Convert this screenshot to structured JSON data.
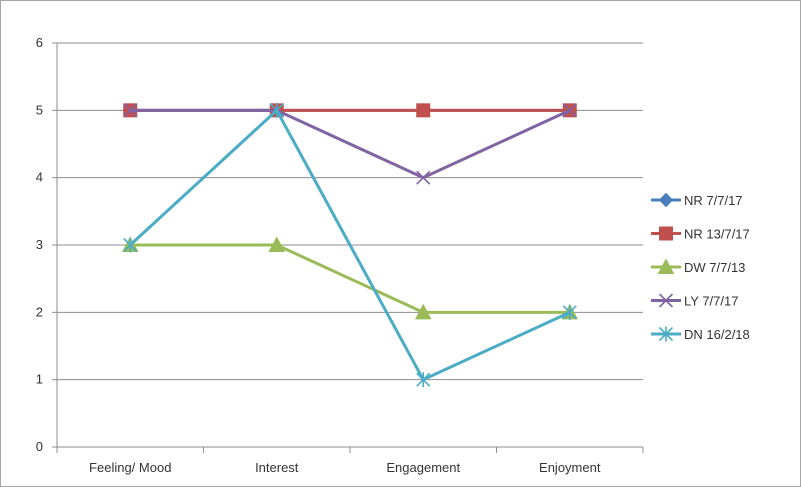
{
  "chart_data": {
    "type": "line",
    "title": "",
    "xlabel": "",
    "ylabel": "",
    "categories": [
      "Feeling/ Mood",
      "Interest",
      "Engagement",
      "Enjoyment"
    ],
    "ylim": [
      0,
      6
    ],
    "yticks": [
      0,
      1,
      2,
      3,
      4,
      5,
      6
    ],
    "grid": true,
    "legend_position": "right",
    "series": [
      {
        "name": "NR 7/7/17",
        "values": [
          5,
          5,
          5,
          5
        ],
        "color": "#4a7ebb",
        "marker": "diamond"
      },
      {
        "name": "NR 13/7/17",
        "values": [
          5,
          5,
          5,
          5
        ],
        "color": "#c0504d",
        "marker": "square"
      },
      {
        "name": "DW 7/7/13",
        "values": [
          3,
          3,
          2,
          2
        ],
        "color": "#9bbb59",
        "marker": "triangle"
      },
      {
        "name": "LY 7/7/17",
        "values": [
          5,
          5,
          4,
          5
        ],
        "color": "#8064a2",
        "marker": "x"
      },
      {
        "name": "DN 16/2/18",
        "values": [
          3,
          5,
          1,
          2
        ],
        "color": "#4bacc6",
        "marker": "asterisk"
      }
    ]
  }
}
